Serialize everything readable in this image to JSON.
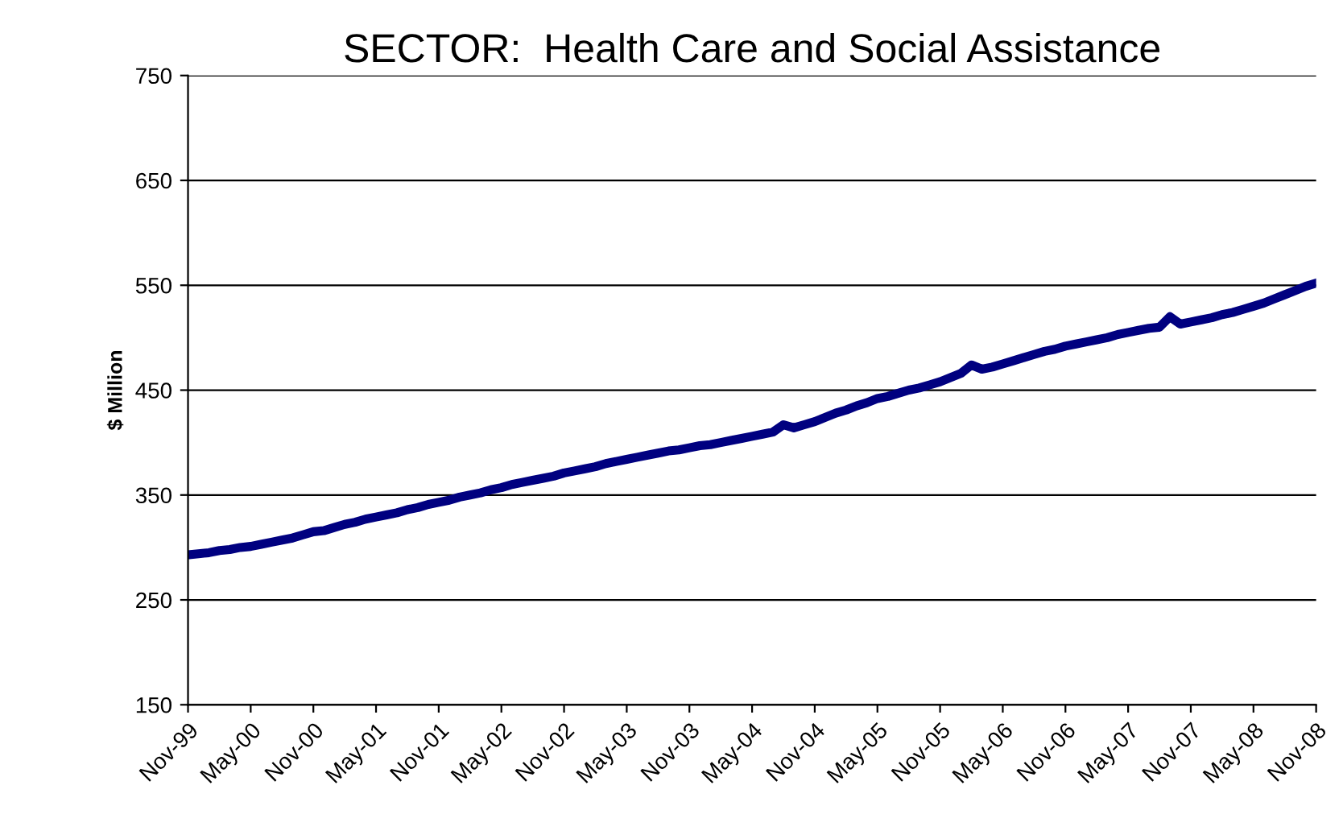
{
  "chart_data": {
    "type": "line",
    "title": "SECTOR:  Health Care and Social Assistance",
    "ylabel": "$ Million",
    "categories": [
      "Nov-99",
      null,
      null,
      null,
      null,
      null,
      "May-00",
      null,
      null,
      null,
      null,
      null,
      "Nov-00",
      null,
      null,
      null,
      null,
      null,
      "May-01",
      null,
      null,
      null,
      null,
      null,
      "Nov-01",
      null,
      null,
      null,
      null,
      null,
      "May-02",
      null,
      null,
      null,
      null,
      null,
      "Nov-02",
      null,
      null,
      null,
      null,
      null,
      "May-03",
      null,
      null,
      null,
      null,
      null,
      "Nov-03",
      null,
      null,
      null,
      null,
      null,
      "May-04",
      null,
      null,
      null,
      null,
      null,
      "Nov-04",
      null,
      null,
      null,
      null,
      null,
      "May-05",
      null,
      null,
      null,
      null,
      null,
      "Nov-05",
      null,
      null,
      null,
      null,
      null,
      "May-06",
      null,
      null,
      null,
      null,
      null,
      "Nov-06",
      null,
      null,
      null,
      null,
      null,
      "May-07",
      null,
      null,
      null,
      null,
      null,
      "Nov-07",
      null,
      null,
      null,
      null,
      null,
      "May-08",
      null,
      null,
      null,
      null,
      null,
      "Nov-08"
    ],
    "series": [
      {
        "color": "#000080",
        "values": [
          293,
          294,
          295,
          297,
          298,
          300,
          301,
          303,
          305,
          307,
          309,
          312,
          315,
          316,
          319,
          322,
          324,
          327,
          329,
          331,
          333,
          336,
          338,
          341,
          343,
          345,
          348,
          350,
          352,
          355,
          357,
          360,
          362,
          364,
          366,
          368,
          371,
          373,
          375,
          377,
          380,
          382,
          384,
          386,
          388,
          390,
          392,
          393,
          395,
          397,
          398,
          400,
          402,
          404,
          406,
          408,
          410,
          417,
          414,
          417,
          420,
          424,
          428,
          431,
          435,
          438,
          442,
          444,
          447,
          450,
          452,
          455,
          458,
          462,
          466,
          474,
          470,
          472,
          475,
          478,
          481,
          484,
          487,
          489,
          492,
          494,
          496,
          498,
          500,
          503,
          505,
          507,
          509,
          510,
          520,
          513,
          515,
          517,
          519,
          522,
          524,
          527,
          530,
          533,
          537,
          541,
          545,
          549,
          552
        ]
      }
    ],
    "ylim": [
      150,
      750
    ],
    "yticks": [
      150,
      250,
      350,
      450,
      550,
      650,
      750
    ],
    "grid": "y",
    "marker": "none",
    "line_style": "solid",
    "legend": false
  }
}
